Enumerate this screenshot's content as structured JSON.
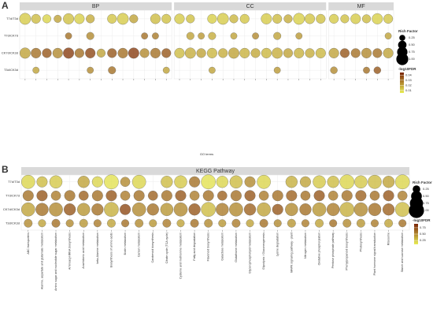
{
  "chart_data": [
    {
      "type": "dotplot",
      "panel": "A",
      "xlabel": "GO terms",
      "rows": [
        "T7d/T3d",
        "T7d/CK7d",
        "CK7d/CK3d",
        "T3d/CK3d"
      ],
      "size_title": "Rich Factor",
      "size_ticks": [
        {
          "value": 0.25,
          "label": "0.25"
        },
        {
          "value": 0.5,
          "label": "0.50"
        },
        {
          "value": 0.75,
          "label": "0.75"
        },
        {
          "value": 1.0,
          "label": "1.00"
        }
      ],
      "color_title": "-log10FDR",
      "color_lim": [
        0.005,
        0.045
      ],
      "color_low": "#e9ee55",
      "color_high": "#7a2408",
      "color_ticks": [
        0.04,
        0.03,
        0.02,
        0.01
      ],
      "facets": [
        {
          "title": "BP",
          "categories": [
            null,
            null,
            null,
            null,
            null,
            null,
            null,
            null,
            null,
            null,
            null,
            null,
            null,
            null
          ],
          "rich_factor": [
            [
              0.9,
              0.6,
              0.5,
              0.4,
              0.8,
              0.7,
              0.5,
              null,
              0.6,
              0.9,
              0.5,
              null,
              0.7,
              0.6
            ],
            [
              null,
              null,
              null,
              null,
              0.3,
              null,
              0.4,
              null,
              null,
              null,
              null,
              0.3,
              0.3,
              null
            ],
            [
              0.8,
              0.7,
              0.6,
              0.7,
              0.8,
              0.6,
              0.7,
              0.5,
              0.6,
              0.7,
              0.8,
              0.6,
              0.7,
              0.6
            ],
            [
              null,
              0.3,
              null,
              null,
              null,
              null,
              0.3,
              null,
              0.4,
              null,
              null,
              null,
              null,
              0.3
            ]
          ],
          "fdr": [
            [
              0.012,
              0.015,
              0.01,
              0.02,
              0.014,
              0.011,
              0.018,
              null,
              0.013,
              0.012,
              0.02,
              null,
              0.015,
              0.014
            ],
            [
              null,
              null,
              null,
              null,
              0.03,
              null,
              0.025,
              null,
              null,
              null,
              null,
              0.03,
              0.028,
              null
            ],
            [
              0.02,
              0.03,
              0.035,
              0.025,
              0.04,
              0.03,
              0.038,
              0.02,
              0.035,
              0.03,
              0.04,
              0.025,
              0.03,
              0.035
            ],
            [
              null,
              0.02,
              null,
              null,
              null,
              null,
              0.025,
              null,
              0.03,
              null,
              null,
              null,
              null,
              0.02
            ]
          ]
        },
        {
          "title": "CC",
          "categories": [
            null,
            null,
            null,
            null,
            null,
            null,
            null,
            null,
            null,
            null,
            null,
            null,
            null,
            null
          ],
          "rich_factor": [
            [
              0.7,
              0.5,
              null,
              0.6,
              0.9,
              0.5,
              0.6,
              null,
              0.8,
              0.6,
              0.5,
              0.9,
              0.7,
              0.6
            ],
            [
              null,
              0.4,
              0.3,
              0.4,
              null,
              0.3,
              null,
              0.3,
              null,
              0.4,
              null,
              0.3,
              null,
              null
            ],
            [
              0.7,
              0.8,
              0.6,
              0.7,
              0.6,
              0.8,
              0.7,
              0.6,
              0.7,
              0.8,
              0.6,
              0.7,
              0.6,
              0.7
            ],
            [
              null,
              null,
              null,
              0.3,
              null,
              null,
              null,
              null,
              null,
              0.3,
              null,
              null,
              null,
              null
            ]
          ],
          "fdr": [
            [
              0.012,
              0.014,
              null,
              0.011,
              0.012,
              0.016,
              0.013,
              null,
              0.012,
              0.015,
              0.018,
              0.011,
              0.013,
              0.014
            ],
            [
              null,
              0.02,
              0.022,
              0.018,
              null,
              0.02,
              null,
              0.025,
              null,
              0.02,
              null,
              0.022,
              null,
              null
            ],
            [
              0.015,
              0.018,
              0.02,
              0.016,
              0.018,
              0.02,
              0.017,
              0.019,
              0.016,
              0.018,
              0.02,
              0.017,
              0.018,
              0.016
            ],
            [
              null,
              null,
              null,
              0.02,
              null,
              null,
              null,
              null,
              null,
              0.022,
              null,
              null,
              null,
              null
            ]
          ]
        },
        {
          "title": "MF",
          "categories": [
            null,
            null,
            null,
            null,
            null,
            null
          ],
          "rich_factor": [
            [
              0.6,
              0.5,
              0.7,
              0.5,
              0.8,
              0.6
            ],
            [
              null,
              null,
              null,
              null,
              null,
              0.3
            ],
            [
              0.7,
              0.6,
              0.6,
              0.7,
              0.6,
              0.7
            ],
            [
              0.35,
              null,
              null,
              0.3,
              0.35,
              null
            ]
          ],
          "fdr": [
            [
              0.012,
              0.014,
              0.012,
              0.015,
              0.011,
              0.013
            ],
            [
              null,
              null,
              null,
              null,
              null,
              0.02
            ],
            [
              0.02,
              0.035,
              0.03,
              0.025,
              0.03,
              0.02
            ],
            [
              0.025,
              null,
              null,
              0.03,
              0.035,
              null
            ]
          ]
        }
      ]
    },
    {
      "type": "dotplot",
      "panel": "B",
      "rows": [
        "T7d/T3d",
        "T7d/CK7d",
        "CK7d/CK3d",
        "T3d/CK3d"
      ],
      "size_title": "Rich Factor",
      "size_ticks": [
        {
          "value": 0.25,
          "label": "0.25"
        },
        {
          "value": 0.5,
          "label": "0.50"
        },
        {
          "value": 0.75,
          "label": "0.75"
        },
        {
          "value": 1.0,
          "label": "1.00"
        }
      ],
      "color_title": "-log10FDR",
      "color_lim": [
        0.1,
        0.9
      ],
      "color_low": "#e9ee55",
      "color_high": "#7a2408",
      "color_ticks": [
        0.75,
        {
          "value": 0.5,
          "label": "0.50"
        },
        0.25
      ],
      "facets": [
        {
          "title": "KEGG Pathway",
          "categories": [
            "ABC transporters",
            "Alanine, aspartate and glutamate metabolism",
            "Amino sugar and nucleotide sugar metabolism",
            "Aminoacyl-tRNA biosynthesis",
            "Arachidonic acid metabolism",
            "beta-Alanine metabolism",
            "Biosynthesis of amino acids",
            "Biotin metabolism",
            "Carbon metabolism",
            "Carotenoid biosynthesis",
            "Citrate cycle (TCA cycle)",
            "Cysteine and methionine metabolism",
            "Fatty acid degradation",
            "Flavonoid biosynthesis",
            "Galactose metabolism",
            "Glutathione metabolism",
            "Glycerophospholipid metabolism",
            "Glycolysis / Gluconeogenesis",
            "Lysine degradation",
            "MAPK signaling pathway - plant",
            "Nitrogen metabolism",
            "Oxidative phosphorylation",
            "Pentose phosphate pathway",
            "Phenylpropanoid biosynthesis",
            "Photosynthesis",
            "Plant hormone signal transduction",
            "Ribosome",
            "Starch and sucrose metabolism"
          ],
          "rich_factor": [
            [
              0.8,
              0.5,
              0.7,
              null,
              0.6,
              0.5,
              0.9,
              0.4,
              0.8,
              null,
              0.6,
              0.7,
              0.5,
              0.9,
              0.6,
              0.7,
              0.5,
              0.8,
              null,
              0.6,
              0.5,
              0.7,
              0.6,
              0.9,
              0.7,
              0.8,
              0.6,
              0.9
            ],
            [
              0.5,
              0.5,
              0.4,
              0.5,
              0.4,
              0.5,
              0.5,
              0.4,
              0.5,
              0.4,
              0.5,
              0.5,
              0.4,
              0.5,
              0.4,
              0.5,
              0.5,
              0.4,
              0.5,
              0.5,
              0.4,
              0.5,
              0.4,
              0.5,
              0.5,
              0.4,
              0.5,
              0.4
            ],
            [
              0.8,
              0.7,
              0.8,
              0.6,
              0.7,
              0.6,
              0.9,
              0.5,
              0.8,
              0.6,
              0.7,
              0.8,
              0.6,
              0.9,
              0.7,
              0.8,
              0.6,
              0.8,
              0.5,
              0.7,
              0.6,
              0.8,
              0.7,
              0.9,
              0.8,
              0.7,
              0.6,
              0.9
            ],
            [
              0.3,
              0.25,
              0.3,
              0.25,
              0.3,
              0.25,
              0.3,
              0.25,
              0.3,
              0.25,
              0.3,
              0.25,
              0.3,
              0.3,
              0.25,
              0.3,
              0.25,
              0.3,
              0.25,
              0.3,
              0.25,
              0.3,
              0.25,
              0.3,
              0.3,
              0.25,
              0.3,
              0.25
            ]
          ],
          "fdr": [
            [
              0.2,
              0.3,
              0.25,
              null,
              0.4,
              0.2,
              0.15,
              0.5,
              0.2,
              null,
              0.3,
              0.25,
              0.6,
              0.15,
              0.2,
              0.3,
              0.5,
              0.2,
              null,
              0.35,
              0.4,
              0.25,
              0.3,
              0.2,
              0.25,
              0.3,
              0.4,
              0.2
            ],
            [
              0.6,
              0.7,
              0.55,
              0.6,
              0.65,
              0.6,
              0.7,
              0.55,
              0.6,
              0.65,
              0.6,
              0.7,
              0.55,
              0.6,
              0.65,
              0.6,
              0.7,
              0.55,
              0.6,
              0.65,
              0.6,
              0.7,
              0.55,
              0.6,
              0.65,
              0.6,
              0.7,
              0.55
            ],
            [
              0.4,
              0.6,
              0.5,
              0.7,
              0.45,
              0.6,
              0.35,
              0.75,
              0.5,
              0.6,
              0.45,
              0.5,
              0.7,
              0.3,
              0.55,
              0.5,
              0.65,
              0.4,
              0.7,
              0.5,
              0.6,
              0.45,
              0.55,
              0.35,
              0.5,
              0.6,
              0.65,
              0.3
            ],
            [
              0.5,
              0.4,
              0.6,
              0.5,
              0.45,
              0.55,
              0.4,
              0.6,
              0.5,
              0.45,
              0.55,
              0.4,
              0.6,
              0.5,
              0.45,
              0.55,
              0.4,
              0.6,
              0.5,
              0.45,
              0.55,
              0.4,
              0.6,
              0.5,
              0.45,
              0.55,
              0.4,
              0.6
            ]
          ]
        }
      ]
    }
  ]
}
